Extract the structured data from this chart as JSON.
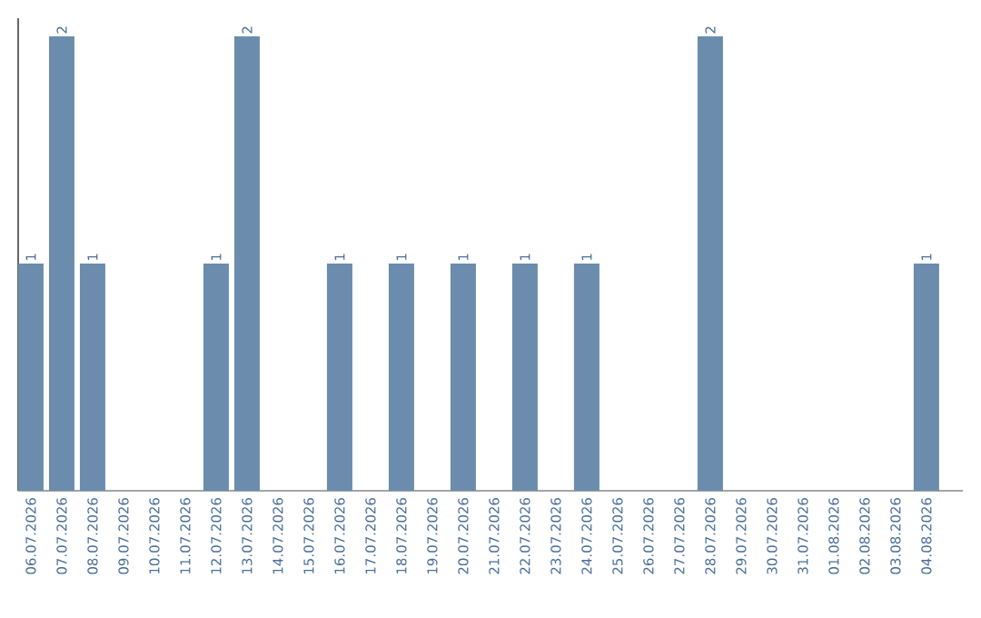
{
  "chart_data": {
    "type": "bar",
    "categories": [
      "06.07.2026",
      "07.07.2026",
      "08.07.2026",
      "09.07.2026",
      "10.07.2026",
      "11.07.2026",
      "12.07.2026",
      "13.07.2026",
      "14.07.2026",
      "15.07.2026",
      "16.07.2026",
      "17.07.2026",
      "18.07.2026",
      "19.07.2026",
      "20.07.2026",
      "21.07.2026",
      "22.07.2026",
      "23.07.2026",
      "24.07.2026",
      "25.07.2026",
      "26.07.2026",
      "27.07.2026",
      "28.07.2026",
      "29.07.2026",
      "30.07.2026",
      "31.07.2026",
      "01.08.2026",
      "02.08.2026",
      "03.08.2026",
      "04.08.2026"
    ],
    "values": [
      1,
      2,
      1,
      0,
      0,
      0,
      1,
      2,
      0,
      0,
      1,
      0,
      1,
      0,
      1,
      0,
      1,
      0,
      1,
      0,
      0,
      0,
      2,
      0,
      0,
      0,
      0,
      0,
      0,
      1
    ],
    "value_labels": [
      "1",
      "2",
      "1",
      null,
      null,
      null,
      "1",
      "2",
      null,
      null,
      "1",
      null,
      "1",
      null,
      "1",
      null,
      "1",
      null,
      "1",
      null,
      null,
      null,
      "2",
      null,
      null,
      null,
      null,
      null,
      null,
      "1"
    ],
    "color": "#6b8cac",
    "ylim": [
      0,
      2.08
    ],
    "tick_labels": "x"
  }
}
